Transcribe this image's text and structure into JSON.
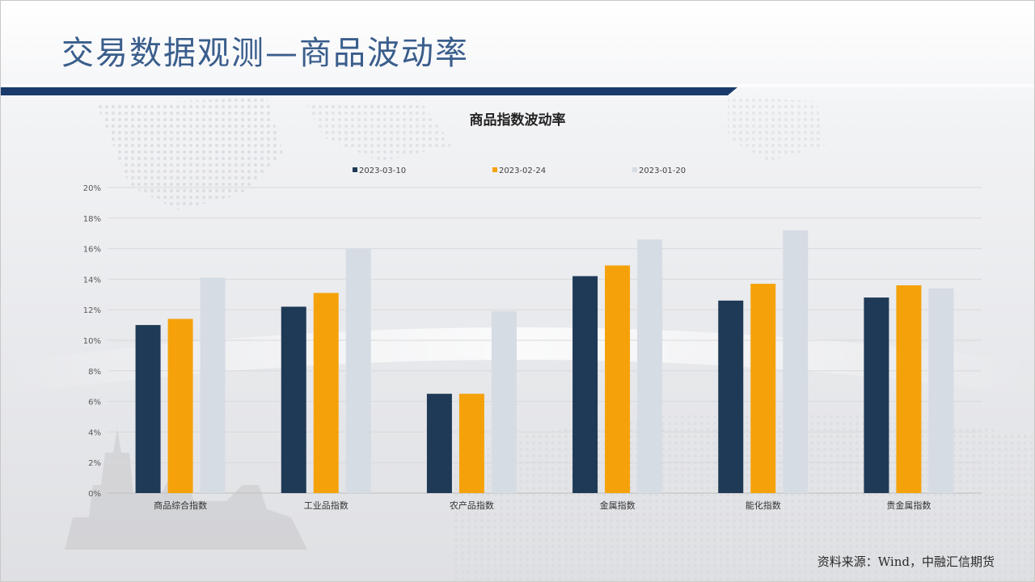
{
  "slide": {
    "title": "交易数据观测—商品波动率",
    "source": "资料来源：Wind，中融汇信期货"
  },
  "colors": {
    "title": "#3a5e8c",
    "title_bar": "#1a3a6b",
    "series_1": "#1f3a56",
    "series_2": "#f5a20a",
    "series_3": "#d6dce4"
  },
  "chart_data": {
    "type": "bar",
    "title": "商品指数波动率",
    "xlabel": "",
    "ylabel": "",
    "ylim": [
      0,
      20
    ],
    "yticks": [
      "0%",
      "2%",
      "4%",
      "6%",
      "8%",
      "10%",
      "12%",
      "14%",
      "16%",
      "18%",
      "20%"
    ],
    "grid": true,
    "legend": "top-center",
    "categories": [
      "商品综合指数",
      "工业品指数",
      "农产品指数",
      "金属指数",
      "能化指数",
      "贵金属指数"
    ],
    "series": [
      {
        "name": "2023-03-10",
        "color": "#1f3a56",
        "values": [
          11.0,
          12.2,
          6.5,
          14.2,
          12.6,
          12.8
        ]
      },
      {
        "name": "2023-02-24",
        "color": "#f5a20a",
        "values": [
          11.4,
          13.1,
          6.5,
          14.9,
          13.7,
          13.6
        ]
      },
      {
        "name": "2023-01-20",
        "color": "#d6dce4",
        "values": [
          14.1,
          16.0,
          11.9,
          16.6,
          17.2,
          13.4
        ]
      }
    ]
  }
}
